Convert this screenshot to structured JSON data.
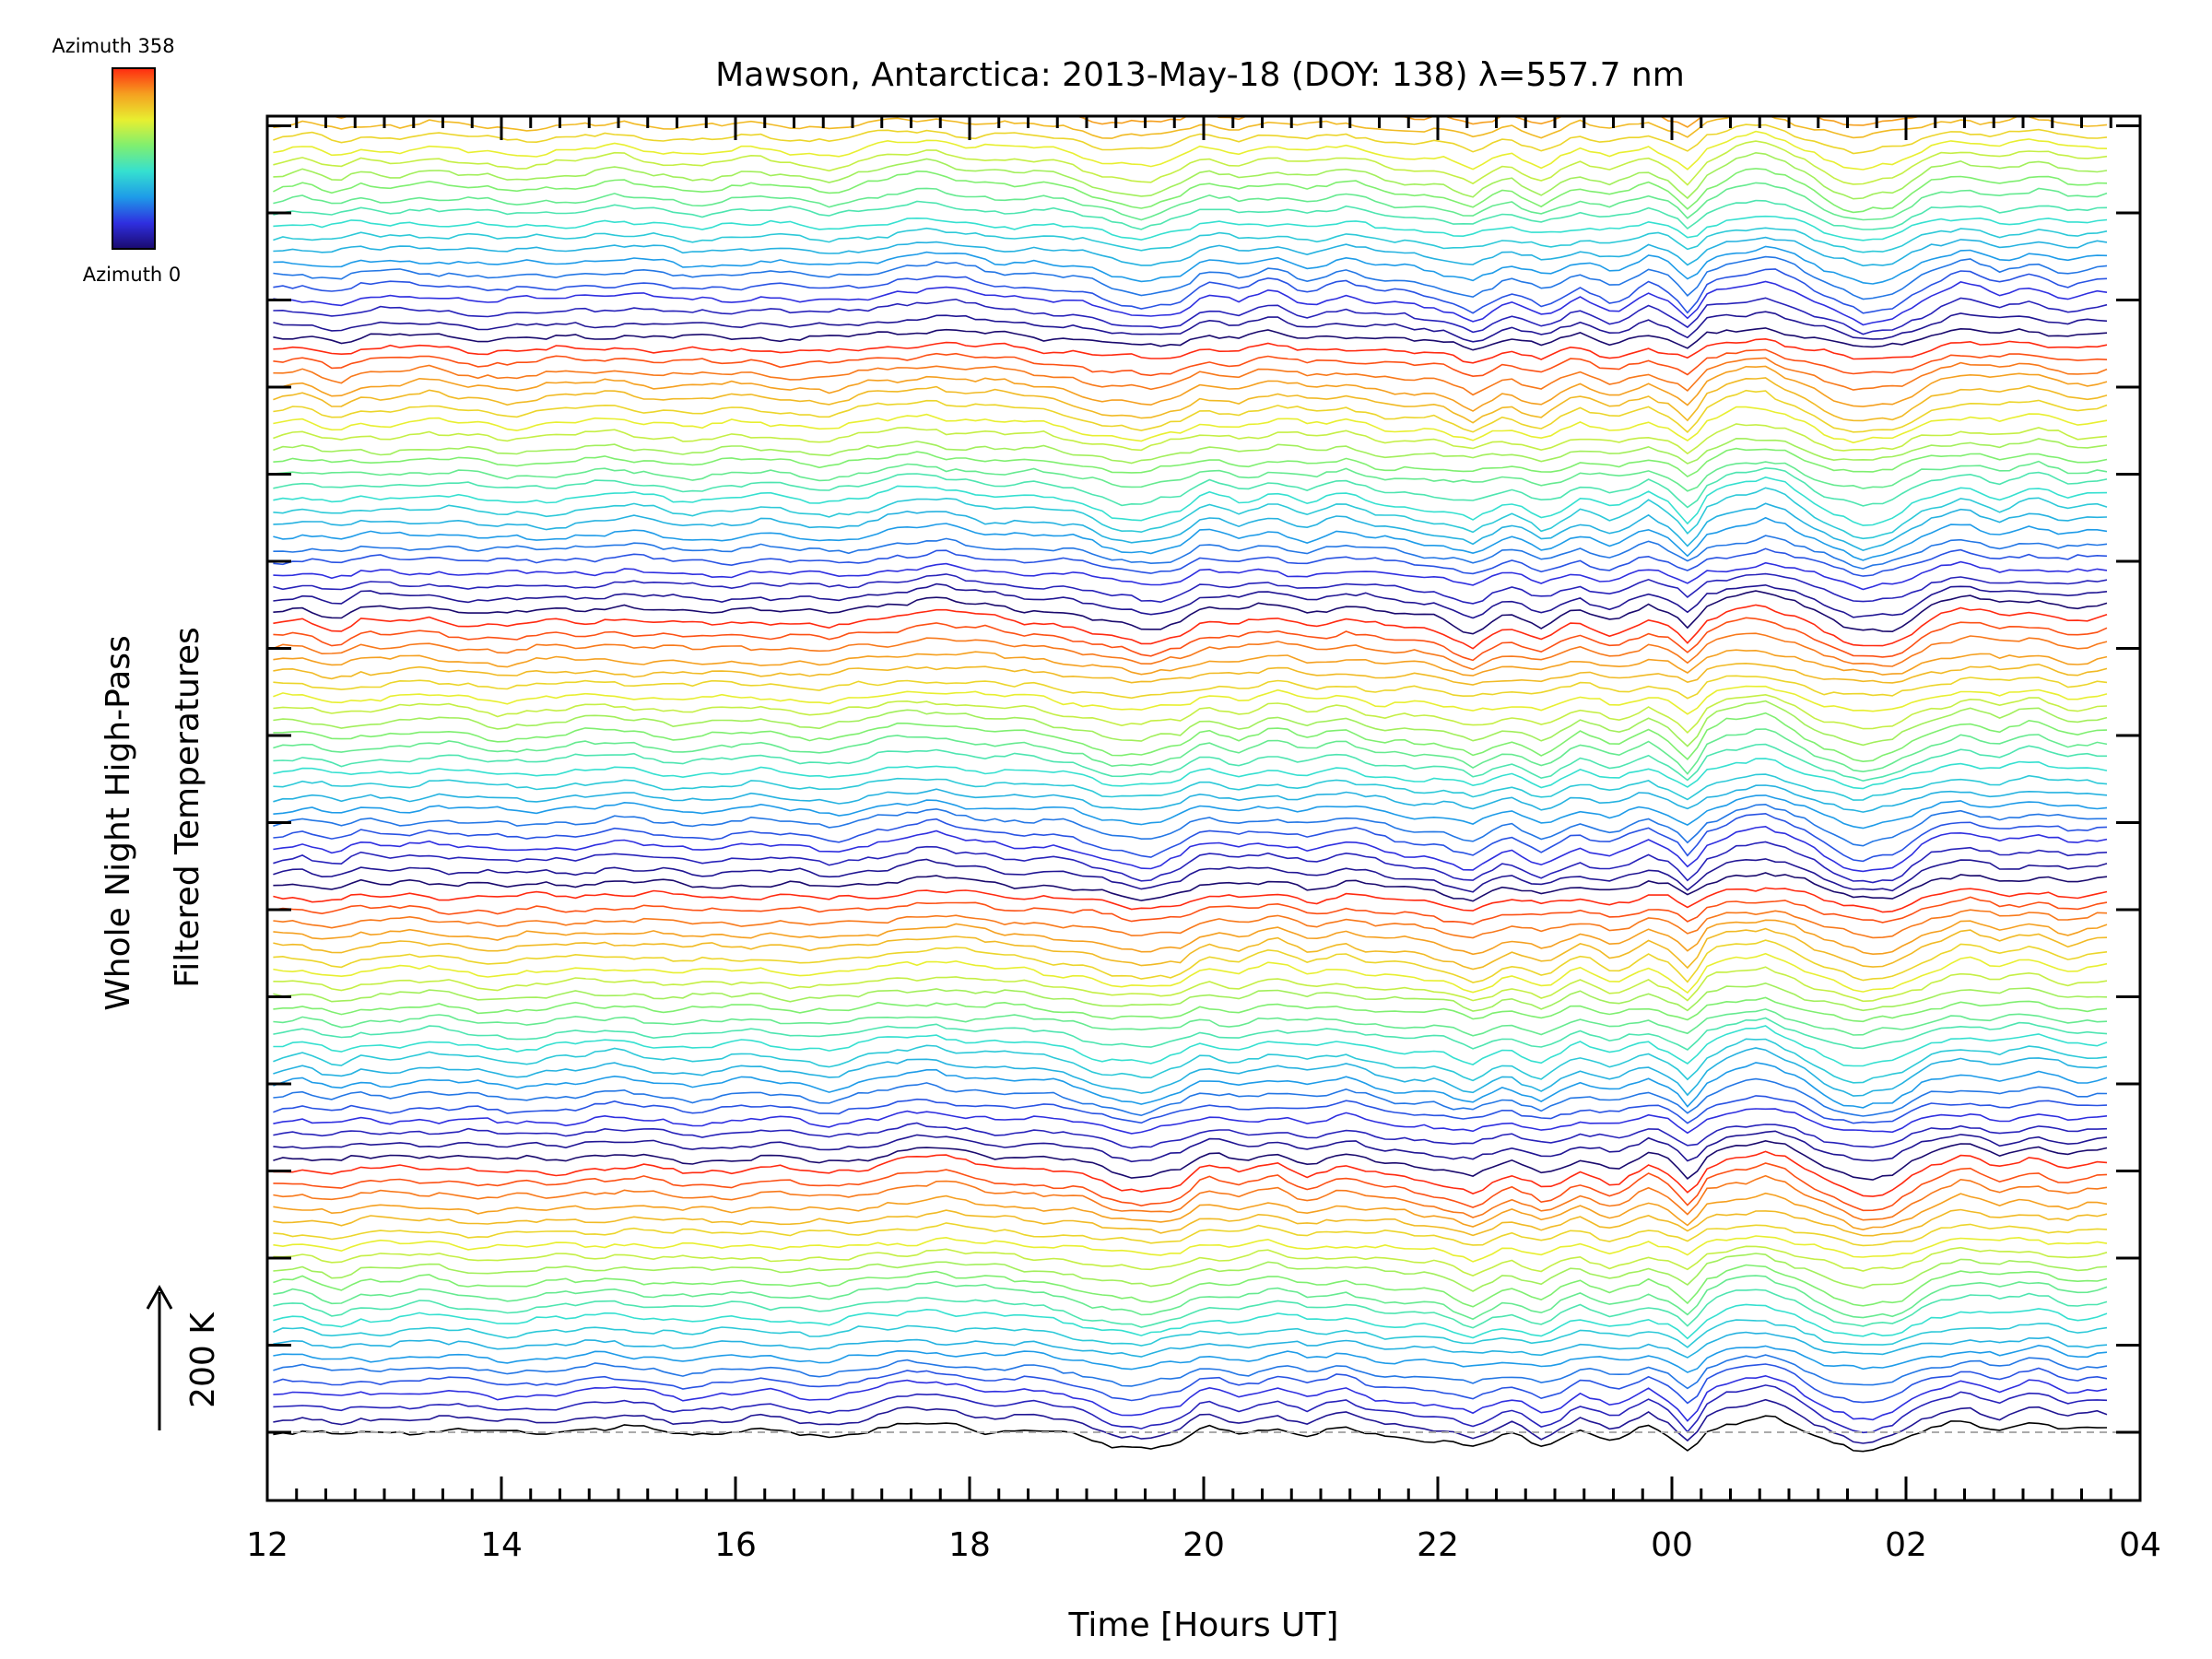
{
  "chart_data": {
    "type": "line",
    "title": "Mawson, Antarctica: 2013-May-18 (DOY: 138) λ=557.7 nm",
    "xlabel": "Time [Hours UT]",
    "ylabel_line1": "Whole Night High-Pass",
    "ylabel_line2": "Filtered Temperatures",
    "x_tick_labels": [
      "12",
      "14",
      "16",
      "18",
      "20",
      "22",
      "00",
      "02",
      "04"
    ],
    "xlim_hours_ut": [
      12,
      28
    ],
    "colorbar": {
      "top_label": "Azimuth  358",
      "bottom_label": "Azimuth  0",
      "min": 0,
      "max": 358,
      "colors": [
        "#1a0a6e",
        "#2f2fe0",
        "#1e9be8",
        "#35e0d0",
        "#7fef70",
        "#e8ef30",
        "#f5a020",
        "#ff2a10"
      ]
    },
    "scale_bar_label": "200 K",
    "scale_bar_kelvin": 200,
    "series_count": 154,
    "series_per_group": 22,
    "group_count": 7,
    "series_vertical_spacing_kelvin": 18,
    "baseline_style": "dashed",
    "data_resolution_minutes": 5,
    "end_time_hours_ut": 27.75,
    "common_signal_kelvin": {
      "x_hours_ut": [
        12.0,
        12.3,
        12.6,
        12.8,
        13.0,
        13.4,
        14.0,
        14.6,
        15.0,
        15.6,
        16.2,
        16.8,
        17.4,
        17.7,
        18.0,
        18.3,
        18.6,
        18.9,
        19.2,
        19.5,
        19.8,
        20.0,
        20.3,
        20.6,
        20.9,
        21.2,
        21.5,
        21.8,
        22.0,
        22.3,
        22.6,
        22.9,
        23.2,
        23.5,
        23.8,
        24.0,
        24.15,
        24.3,
        24.5,
        24.8,
        25.0,
        25.3,
        25.6,
        25.9,
        26.2,
        26.5,
        26.8,
        27.1,
        27.4,
        27.75
      ],
      "y": [
        0,
        4,
        -6,
        3,
        2,
        5,
        -3,
        2,
        6,
        -2,
        3,
        -4,
        10,
        14,
        8,
        4,
        2,
        -4,
        -16,
        -22,
        -12,
        5,
        -2,
        8,
        -3,
        6,
        -4,
        -8,
        -10,
        -24,
        -4,
        -20,
        2,
        -12,
        6,
        -6,
        -26,
        4,
        16,
        22,
        12,
        -10,
        -26,
        -20,
        4,
        16,
        6,
        14,
        2,
        8
      ]
    }
  }
}
